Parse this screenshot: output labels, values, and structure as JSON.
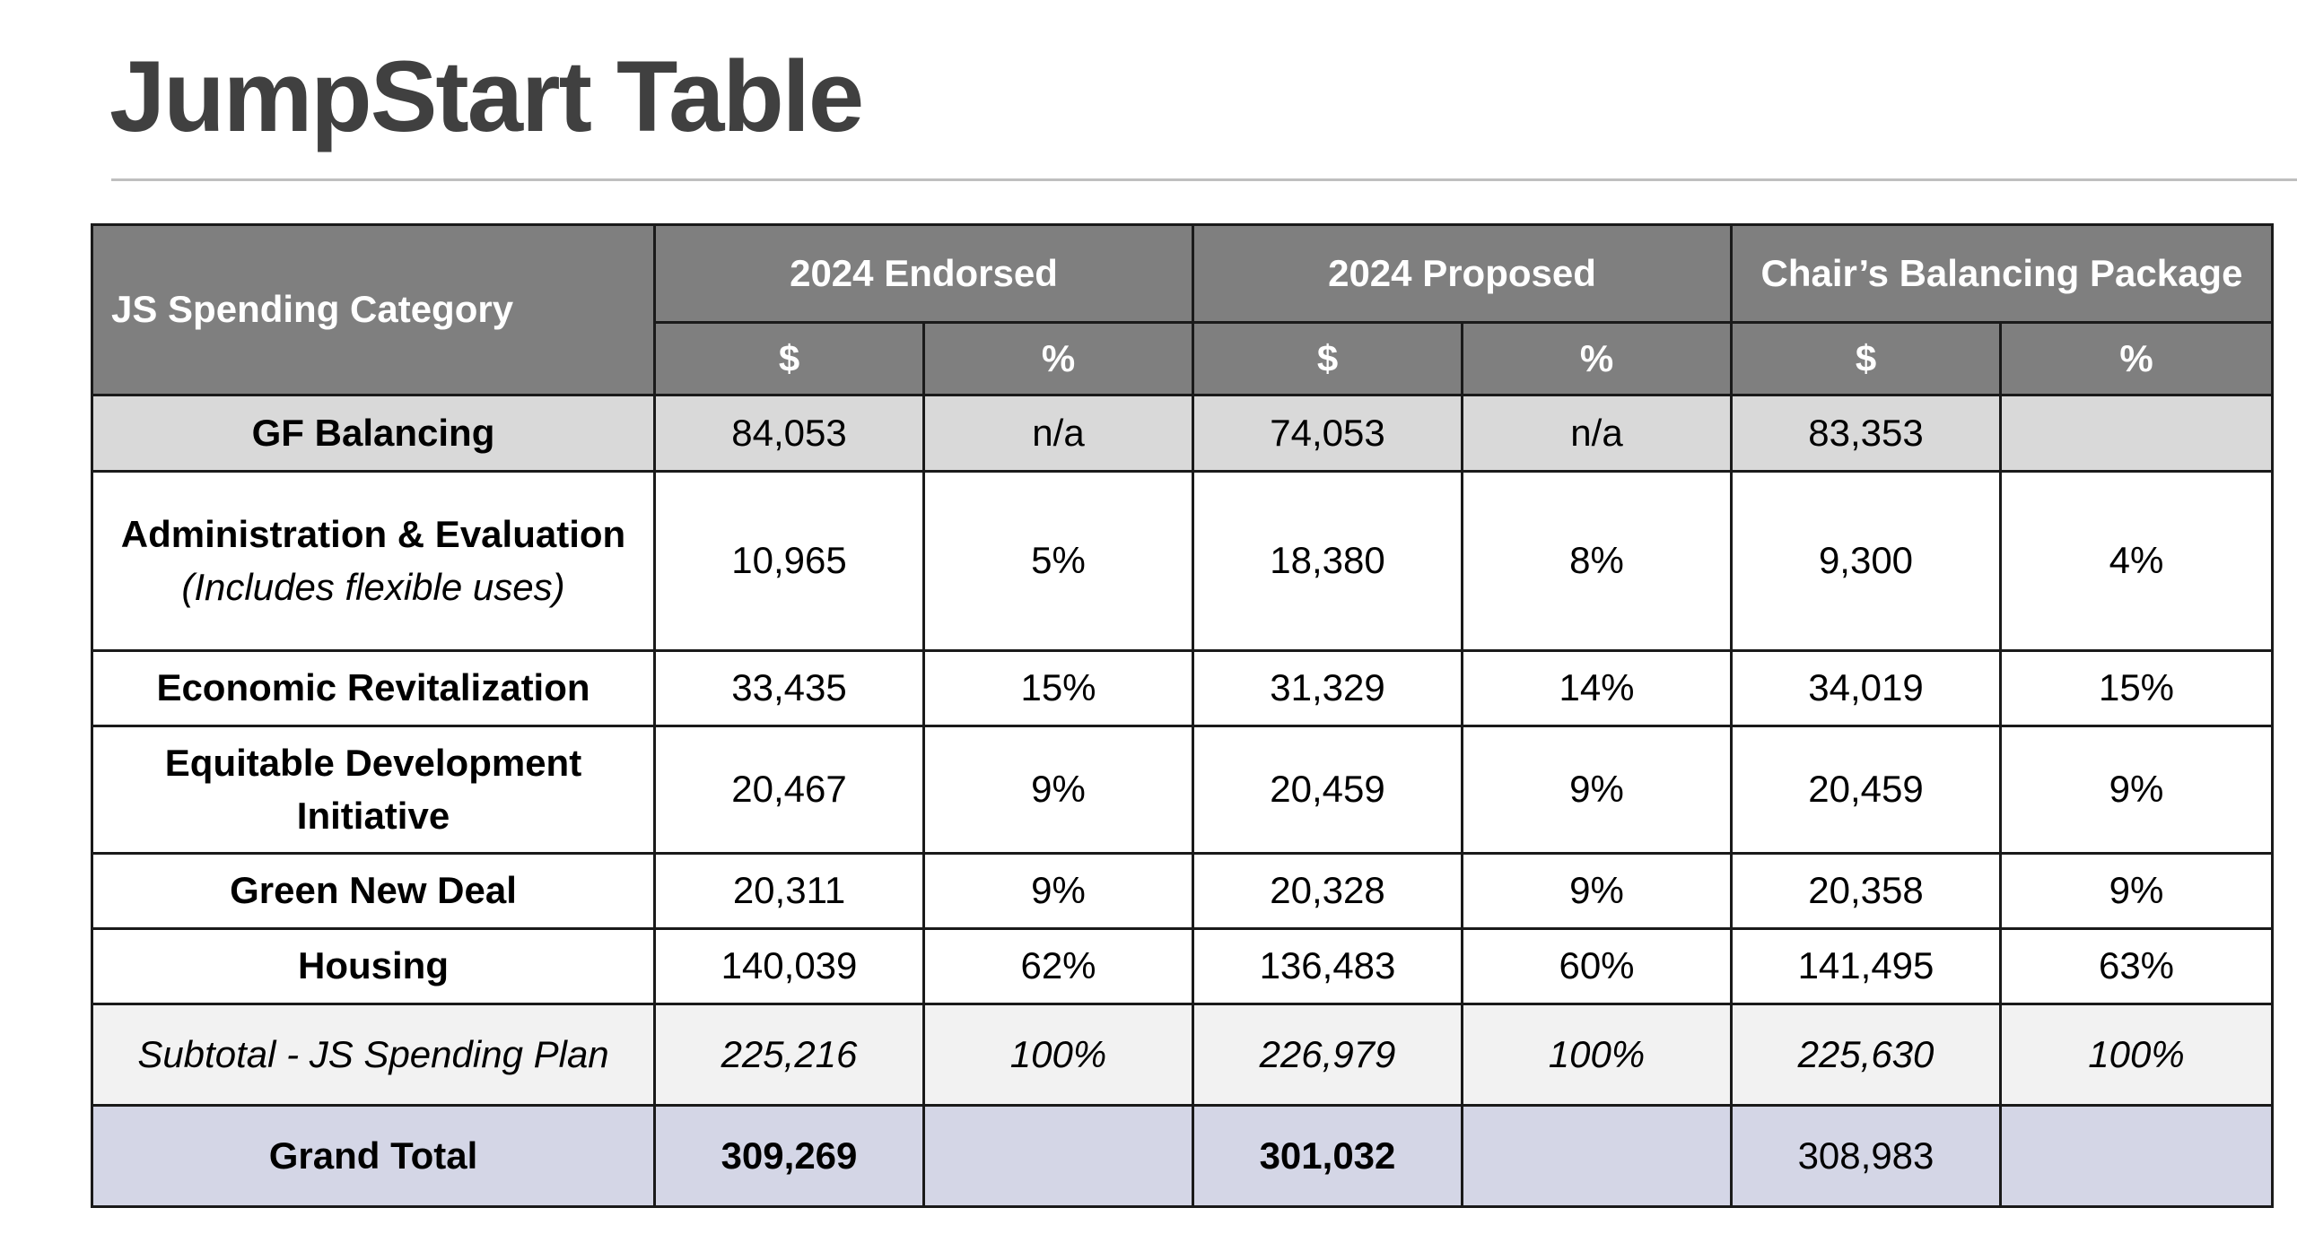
{
  "title": "JumpStart Table",
  "header": {
    "category": "JS Spending Category",
    "groups": [
      "2024 Endorsed",
      "2024 Proposed",
      "Chair’s Balancing Package"
    ],
    "dollar": "$",
    "percent": "%"
  },
  "rows": [
    {
      "category": "GF Balancing",
      "note": "",
      "values": [
        "84,053",
        "n/a",
        "74,053",
        "n/a",
        "83,353",
        ""
      ]
    },
    {
      "category": "Administration & Evaluation",
      "note": "(Includes flexible uses)",
      "values": [
        "10,965",
        "5%",
        "18,380",
        "8%",
        "9,300",
        "4%"
      ]
    },
    {
      "category": "Economic Revitalization",
      "note": "",
      "values": [
        "33,435",
        "15%",
        "31,329",
        "14%",
        "34,019",
        "15%"
      ]
    },
    {
      "category": "Equitable Development Initiative",
      "note": "",
      "values": [
        "20,467",
        "9%",
        "20,459",
        "9%",
        "20,459",
        "9%"
      ]
    },
    {
      "category": "Green New Deal",
      "note": "",
      "values": [
        "20,311",
        "9%",
        "20,328",
        "9%",
        "20,358",
        "9%"
      ]
    },
    {
      "category": "Housing",
      "note": "",
      "values": [
        "140,039",
        "62%",
        "136,483",
        "60%",
        "141,495",
        "63%"
      ]
    }
  ],
  "subtotal": {
    "label": "Subtotal - JS Spending Plan",
    "values": [
      "225,216",
      "100%",
      "226,979",
      "100%",
      "225,630",
      "100%"
    ]
  },
  "grand_total": {
    "label": "Grand Total",
    "values": [
      "309,269",
      "",
      "301,032",
      "",
      "308,983",
      ""
    ]
  },
  "colors": {
    "header_bg": "#7f7f7f",
    "gf_row_bg": "#d9d9d9",
    "subtotal_bg": "#f2f2f2",
    "grand_total_bg": "#d4d6e6",
    "title_color": "#404040"
  }
}
